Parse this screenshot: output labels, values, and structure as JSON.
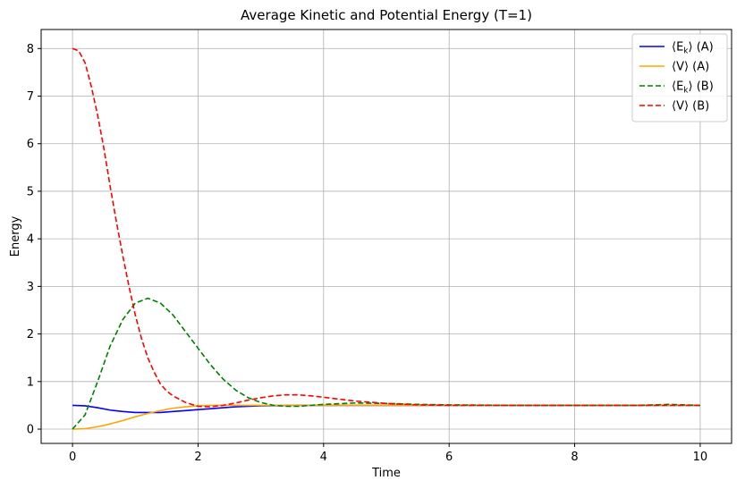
{
  "chart_data": {
    "type": "line",
    "title": "Average Kinetic and Potential Energy (T=1)",
    "xlabel": "Time",
    "ylabel": "Energy",
    "xlim": [
      -0.5,
      10.5
    ],
    "ylim": [
      -0.3,
      8.4
    ],
    "xticks": [
      0,
      2,
      4,
      6,
      8,
      10
    ],
    "yticks": [
      0,
      1,
      2,
      3,
      4,
      5,
      6,
      7,
      8
    ],
    "grid": true,
    "legend_position": "top-right",
    "series": [
      {
        "name": "⟨E_k⟩ (A)",
        "legend_main": "⟨E",
        "legend_sub": "k",
        "legend_rest": "⟩ (A)",
        "color": "#0000ff",
        "dash": "solid",
        "x": [
          0,
          0.2,
          0.4,
          0.6,
          0.8,
          1.0,
          1.2,
          1.4,
          1.6,
          1.8,
          2.0,
          2.2,
          2.4,
          2.6,
          2.8,
          3.0,
          3.5,
          4.0,
          4.5,
          5.0,
          6.0,
          7.0,
          8.0,
          9.0,
          10.0
        ],
        "values": [
          0.5,
          0.49,
          0.45,
          0.4,
          0.37,
          0.35,
          0.35,
          0.35,
          0.37,
          0.39,
          0.41,
          0.43,
          0.45,
          0.47,
          0.48,
          0.49,
          0.5,
          0.5,
          0.5,
          0.5,
          0.5,
          0.5,
          0.5,
          0.5,
          0.5
        ]
      },
      {
        "name": "⟨V⟩ (A)",
        "legend_main": "⟨V",
        "legend_sub": "",
        "legend_rest": "⟩ (A)",
        "color": "#ffa500",
        "dash": "solid",
        "x": [
          0,
          0.2,
          0.4,
          0.6,
          0.8,
          1.0,
          1.2,
          1.4,
          1.6,
          1.8,
          2.0,
          2.2,
          2.4,
          2.6,
          2.8,
          3.0,
          3.5,
          4.0,
          4.5,
          5.0,
          6.0,
          7.0,
          8.0,
          9.0,
          10.0
        ],
        "values": [
          0.0,
          0.01,
          0.05,
          0.11,
          0.18,
          0.26,
          0.33,
          0.39,
          0.44,
          0.47,
          0.49,
          0.5,
          0.5,
          0.5,
          0.5,
          0.5,
          0.5,
          0.5,
          0.5,
          0.5,
          0.5,
          0.5,
          0.5,
          0.5,
          0.5
        ]
      },
      {
        "name": "⟨E_k⟩ (B)",
        "legend_main": "⟨E",
        "legend_sub": "k",
        "legend_rest": "⟩ (B)",
        "color": "#008000",
        "dash": "dashed",
        "x": [
          0,
          0.2,
          0.4,
          0.6,
          0.8,
          1.0,
          1.2,
          1.4,
          1.6,
          1.8,
          2.0,
          2.2,
          2.4,
          2.6,
          2.8,
          3.0,
          3.2,
          3.4,
          3.6,
          3.8,
          4.0,
          4.5,
          5.0,
          5.5,
          6.0,
          7.0,
          8.0,
          9.0,
          9.5,
          10.0
        ],
        "values": [
          0.0,
          0.3,
          1.0,
          1.75,
          2.3,
          2.65,
          2.75,
          2.65,
          2.4,
          2.05,
          1.7,
          1.35,
          1.05,
          0.82,
          0.66,
          0.56,
          0.5,
          0.48,
          0.48,
          0.5,
          0.52,
          0.55,
          0.54,
          0.52,
          0.51,
          0.5,
          0.5,
          0.5,
          0.52,
          0.5
        ]
      },
      {
        "name": "⟨V⟩ (B)",
        "legend_main": "⟨V",
        "legend_sub": "",
        "legend_rest": "⟩ (B)",
        "color": "#ff0000",
        "dash": "dashed",
        "x": [
          0,
          0.1,
          0.2,
          0.3,
          0.4,
          0.5,
          0.6,
          0.7,
          0.8,
          0.9,
          1.0,
          1.1,
          1.2,
          1.3,
          1.4,
          1.5,
          1.6,
          1.8,
          2.0,
          2.2,
          2.4,
          2.6,
          2.8,
          3.0,
          3.2,
          3.4,
          3.6,
          3.8,
          4.0,
          4.5,
          5.0,
          5.5,
          6.0,
          7.0,
          8.0,
          9.0,
          10.0
        ],
        "values": [
          8.0,
          7.95,
          7.7,
          7.2,
          6.6,
          5.9,
          5.1,
          4.35,
          3.65,
          3.0,
          2.4,
          1.9,
          1.5,
          1.2,
          0.95,
          0.8,
          0.7,
          0.56,
          0.48,
          0.47,
          0.5,
          0.55,
          0.61,
          0.66,
          0.7,
          0.72,
          0.72,
          0.7,
          0.67,
          0.59,
          0.54,
          0.51,
          0.5,
          0.5,
          0.5,
          0.5,
          0.5
        ]
      }
    ]
  }
}
